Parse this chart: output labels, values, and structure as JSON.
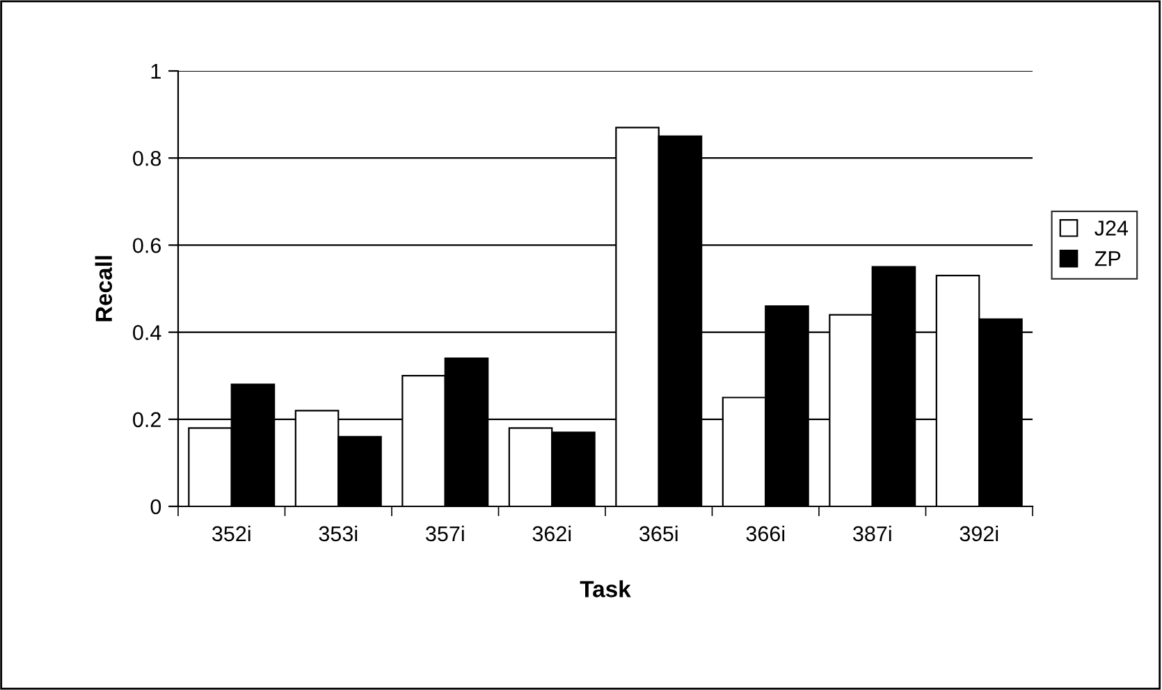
{
  "chart_data": {
    "type": "bar",
    "xlabel": "Task",
    "ylabel": "Recall",
    "categories": [
      "352i",
      "353i",
      "357i",
      "362i",
      "365i",
      "366i",
      "387i",
      "392i"
    ],
    "series": [
      {
        "name": "J24",
        "color": "#ffffff",
        "values": [
          0.18,
          0.22,
          0.3,
          0.18,
          0.87,
          0.25,
          0.44,
          0.53
        ]
      },
      {
        "name": "ZP",
        "color": "#000000",
        "values": [
          0.28,
          0.16,
          0.34,
          0.17,
          0.85,
          0.46,
          0.55,
          0.43
        ]
      }
    ],
    "ylim": [
      0,
      1
    ],
    "yticks": [
      0,
      0.2,
      0.4,
      0.6,
      0.8,
      1
    ],
    "grid": "y",
    "legend": "right"
  }
}
